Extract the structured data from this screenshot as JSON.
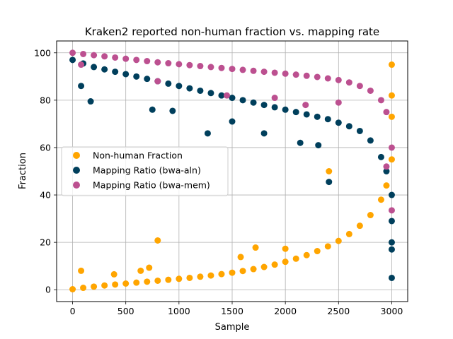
{
  "chart_data": {
    "type": "scatter",
    "title": "Kraken2 reported non-human fraction vs. mapping rate",
    "xlabel": "Sample",
    "ylabel": "Fraction",
    "xlim": [
      -150,
      3150
    ],
    "ylim": [
      -5,
      105
    ],
    "xticks": [
      0,
      500,
      1000,
      1500,
      2000,
      2500,
      3000
    ],
    "yticks": [
      0,
      20,
      40,
      60,
      80,
      100
    ],
    "grid": true,
    "legend_position": "center-left",
    "series": [
      {
        "name": "Non-human Fraction",
        "color": "#ffa500",
        "points": [
          [
            0,
            0.2
          ],
          [
            100,
            0.8
          ],
          [
            200,
            1.3
          ],
          [
            300,
            1.8
          ],
          [
            400,
            2.2
          ],
          [
            500,
            2.6
          ],
          [
            600,
            3.0
          ],
          [
            700,
            3.4
          ],
          [
            800,
            3.8
          ],
          [
            900,
            4.2
          ],
          [
            1000,
            4.6
          ],
          [
            1100,
            5.0
          ],
          [
            1200,
            5.5
          ],
          [
            1300,
            6.0
          ],
          [
            1400,
            6.6
          ],
          [
            1500,
            7.2
          ],
          [
            1600,
            7.9
          ],
          [
            1700,
            8.7
          ],
          [
            1800,
            9.6
          ],
          [
            1900,
            10.6
          ],
          [
            2000,
            11.8
          ],
          [
            2100,
            13.1
          ],
          [
            2200,
            14.6
          ],
          [
            2300,
            16.3
          ],
          [
            2400,
            18.3
          ],
          [
            2500,
            20.6
          ],
          [
            2600,
            23.5
          ],
          [
            2700,
            27.0
          ],
          [
            2800,
            31.5
          ],
          [
            2900,
            38.0
          ],
          [
            2950,
            44.0
          ],
          [
            3000,
            55.0
          ],
          [
            80,
            8.0
          ],
          [
            390,
            6.5
          ],
          [
            640,
            8.0
          ],
          [
            720,
            9.3
          ],
          [
            800,
            20.8
          ],
          [
            1580,
            13.8
          ],
          [
            1720,
            17.8
          ],
          [
            2000,
            17.3
          ],
          [
            2410,
            50.0
          ],
          [
            3000,
            95.0
          ],
          [
            3000,
            82.0
          ],
          [
            3000,
            73.0
          ]
        ]
      },
      {
        "name": "Mapping Ratio (bwa-aln)",
        "color": "#003f5c",
        "points": [
          [
            0,
            97.0
          ],
          [
            100,
            95.5
          ],
          [
            200,
            94.0
          ],
          [
            300,
            93.0
          ],
          [
            400,
            92.0
          ],
          [
            500,
            91.0
          ],
          [
            600,
            90.0
          ],
          [
            700,
            89.0
          ],
          [
            800,
            88.0
          ],
          [
            900,
            87.0
          ],
          [
            1000,
            86.0
          ],
          [
            1100,
            85.0
          ],
          [
            1200,
            84.0
          ],
          [
            1300,
            83.0
          ],
          [
            1400,
            82.0
          ],
          [
            1500,
            81.0
          ],
          [
            1600,
            80.0
          ],
          [
            1700,
            79.0
          ],
          [
            1800,
            78.0
          ],
          [
            1900,
            77.0
          ],
          [
            2000,
            76.0
          ],
          [
            2100,
            75.0
          ],
          [
            2200,
            74.0
          ],
          [
            2300,
            73.0
          ],
          [
            2400,
            72.0
          ],
          [
            2500,
            70.5
          ],
          [
            2600,
            69.0
          ],
          [
            2700,
            67.0
          ],
          [
            2800,
            63.0
          ],
          [
            2900,
            56.0
          ],
          [
            2950,
            50.0
          ],
          [
            3000,
            40.0
          ],
          [
            80,
            86.0
          ],
          [
            170,
            79.5
          ],
          [
            750,
            76.0
          ],
          [
            940,
            75.5
          ],
          [
            1270,
            66.0
          ],
          [
            1500,
            71.0
          ],
          [
            1800,
            66.0
          ],
          [
            2140,
            62.0
          ],
          [
            2310,
            61.0
          ],
          [
            2410,
            45.5
          ],
          [
            3000,
            20.0
          ],
          [
            3000,
            17.0
          ],
          [
            3000,
            5.0
          ],
          [
            3000,
            29.0
          ]
        ]
      },
      {
        "name": "Mapping Ratio (bwa-mem)",
        "color": "#bc5090",
        "points": [
          [
            0,
            100.0
          ],
          [
            100,
            99.5
          ],
          [
            200,
            99.0
          ],
          [
            300,
            98.5
          ],
          [
            400,
            98.0
          ],
          [
            500,
            97.5
          ],
          [
            600,
            97.0
          ],
          [
            700,
            96.5
          ],
          [
            800,
            96.0
          ],
          [
            900,
            95.6
          ],
          [
            1000,
            95.2
          ],
          [
            1100,
            94.8
          ],
          [
            1200,
            94.4
          ],
          [
            1300,
            94.0
          ],
          [
            1400,
            93.6
          ],
          [
            1500,
            93.2
          ],
          [
            1600,
            92.8
          ],
          [
            1700,
            92.4
          ],
          [
            1800,
            92.0
          ],
          [
            1900,
            91.6
          ],
          [
            2000,
            91.2
          ],
          [
            2100,
            90.8
          ],
          [
            2200,
            90.3
          ],
          [
            2300,
            89.8
          ],
          [
            2400,
            89.2
          ],
          [
            2500,
            88.5
          ],
          [
            2600,
            87.5
          ],
          [
            2700,
            86.0
          ],
          [
            2800,
            84.0
          ],
          [
            2900,
            80.0
          ],
          [
            2950,
            75.0
          ],
          [
            3000,
            60.0
          ],
          [
            80,
            95.0
          ],
          [
            800,
            88.0
          ],
          [
            1450,
            82.0
          ],
          [
            1900,
            81.0
          ],
          [
            2190,
            78.0
          ],
          [
            2500,
            79.0
          ],
          [
            2950,
            52.0
          ],
          [
            3000,
            33.5
          ]
        ]
      }
    ]
  }
}
